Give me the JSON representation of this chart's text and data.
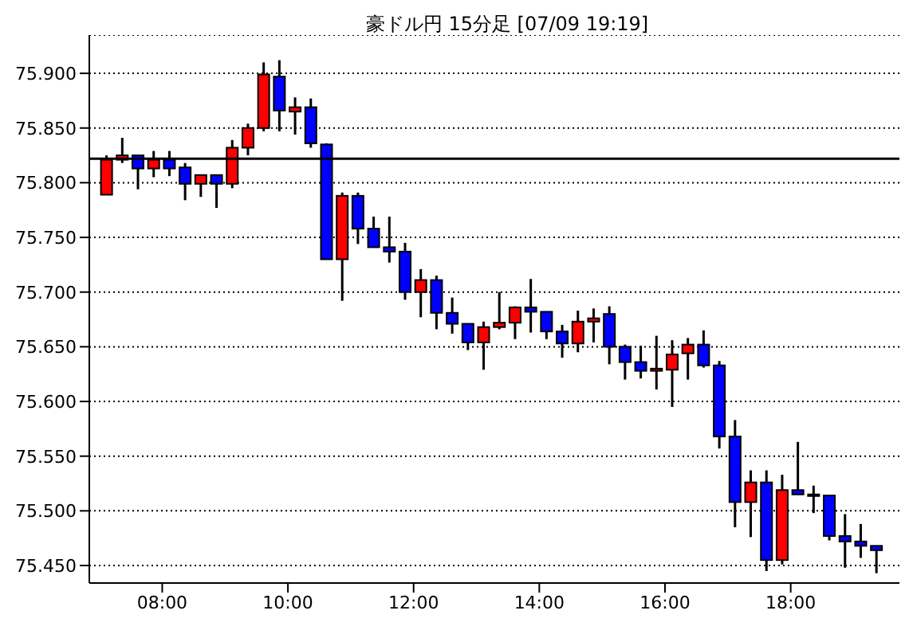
{
  "chart_data": {
    "type": "candlestick",
    "title": "豪ドル円 15分足 [07/09 19:19]",
    "x": [
      7.125,
      7.375,
      7.625,
      7.875,
      8.125,
      8.375,
      8.625,
      8.875,
      9.125,
      9.375,
      9.625,
      9.875,
      10.125,
      10.375,
      10.625,
      10.875,
      11.125,
      11.375,
      11.625,
      11.875,
      12.125,
      12.375,
      12.625,
      12.875,
      13.125,
      13.375,
      13.625,
      13.875,
      14.125,
      14.375,
      14.625,
      14.875,
      15.125,
      15.375,
      15.625,
      15.875,
      16.125,
      16.375,
      16.625,
      16.875,
      17.125,
      17.375,
      17.625,
      17.875,
      18.125,
      18.375,
      18.625,
      18.875,
      19.125,
      19.375
    ],
    "ohlc": [
      [
        75.789,
        75.825,
        75.789,
        75.821
      ],
      [
        75.821,
        75.841,
        75.818,
        75.825
      ],
      [
        75.825,
        75.825,
        75.794,
        75.813
      ],
      [
        75.813,
        75.829,
        75.805,
        75.821
      ],
      [
        75.821,
        75.829,
        75.806,
        75.813
      ],
      [
        75.814,
        75.818,
        75.784,
        75.799
      ],
      [
        75.799,
        75.807,
        75.787,
        75.807
      ],
      [
        75.807,
        75.807,
        75.777,
        75.799
      ],
      [
        75.799,
        75.839,
        75.795,
        75.832
      ],
      [
        75.832,
        75.854,
        75.825,
        75.85
      ],
      [
        75.85,
        75.91,
        75.847,
        75.899
      ],
      [
        75.897,
        75.912,
        75.847,
        75.866
      ],
      [
        75.865,
        75.878,
        75.844,
        75.869
      ],
      [
        75.869,
        75.877,
        75.832,
        75.836
      ],
      [
        75.835,
        75.836,
        75.73,
        75.73
      ],
      [
        75.73,
        75.791,
        75.692,
        75.788
      ],
      [
        75.788,
        75.791,
        75.744,
        75.758
      ],
      [
        75.758,
        75.769,
        75.741,
        75.741
      ],
      [
        75.741,
        75.769,
        75.727,
        75.737
      ],
      [
        75.737,
        75.745,
        75.693,
        75.7
      ],
      [
        75.7,
        75.721,
        75.677,
        75.711
      ],
      [
        75.711,
        75.715,
        75.666,
        75.681
      ],
      [
        75.681,
        75.695,
        75.662,
        75.671
      ],
      [
        75.671,
        75.671,
        75.647,
        75.654
      ],
      [
        75.654,
        75.673,
        75.629,
        75.668
      ],
      [
        75.668,
        75.7,
        75.666,
        75.672
      ],
      [
        75.672,
        75.687,
        75.657,
        75.686
      ],
      [
        75.686,
        75.712,
        75.663,
        75.682
      ],
      [
        75.682,
        75.682,
        75.657,
        75.664
      ],
      [
        75.664,
        75.67,
        75.64,
        75.653
      ],
      [
        75.653,
        75.683,
        75.645,
        75.673
      ],
      [
        75.673,
        75.685,
        75.654,
        75.676
      ],
      [
        75.68,
        75.687,
        75.634,
        75.65
      ],
      [
        75.65,
        75.652,
        75.62,
        75.636
      ],
      [
        75.636,
        75.651,
        75.621,
        75.628
      ],
      [
        75.628,
        75.66,
        75.611,
        75.63
      ],
      [
        75.629,
        75.656,
        75.595,
        75.643
      ],
      [
        75.644,
        75.658,
        75.62,
        75.652
      ],
      [
        75.652,
        75.665,
        75.631,
        75.633
      ],
      [
        75.633,
        75.637,
        75.557,
        75.568
      ],
      [
        75.568,
        75.583,
        75.485,
        75.508
      ],
      [
        75.508,
        75.537,
        75.476,
        75.526
      ],
      [
        75.526,
        75.537,
        75.445,
        75.455
      ],
      [
        75.455,
        75.533,
        75.451,
        75.519
      ],
      [
        75.519,
        75.563,
        75.515,
        75.515
      ],
      [
        75.515,
        75.523,
        75.498,
        75.514
      ],
      [
        75.514,
        75.514,
        75.473,
        75.477
      ],
      [
        75.477,
        75.497,
        75.448,
        75.472
      ],
      [
        75.472,
        75.488,
        75.457,
        75.468
      ],
      [
        75.468,
        75.468,
        75.443,
        75.464
      ]
    ],
    "colors": [
      "#ff0000",
      "#ff0000",
      "#0000ff",
      "#ff0000",
      "#0000ff",
      "#0000ff",
      "#ff0000",
      "#0000ff",
      "#ff0000",
      "#ff0000",
      "#ff0000",
      "#0000ff",
      "#ff0000",
      "#0000ff",
      "#0000ff",
      "#ff0000",
      "#0000ff",
      "#0000ff",
      "#0000ff",
      "#0000ff",
      "#ff0000",
      "#0000ff",
      "#0000ff",
      "#0000ff",
      "#ff0000",
      "#ff0000",
      "#ff0000",
      "#0000ff",
      "#0000ff",
      "#0000ff",
      "#ff0000",
      "#ff0000",
      "#0000ff",
      "#0000ff",
      "#0000ff",
      "#ff0000",
      "#ff0000",
      "#ff0000",
      "#0000ff",
      "#0000ff",
      "#0000ff",
      "#ff0000",
      "#0000ff",
      "#ff0000",
      "#0000ff",
      "#0000ff",
      "#0000ff",
      "#0000ff",
      "#0000ff",
      "#0000ff"
    ],
    "xlim": [
      6.84,
      19.73
    ],
    "xticks": [
      {
        "value": 8,
        "label": "08:00"
      },
      {
        "value": 10,
        "label": "10:00"
      },
      {
        "value": 12,
        "label": "12:00"
      },
      {
        "value": 14,
        "label": "14:00"
      },
      {
        "value": 16,
        "label": "16:00"
      },
      {
        "value": 18,
        "label": "18:00"
      }
    ],
    "ylim": [
      75.434,
      75.935
    ],
    "yticks": [
      {
        "value": 75.45,
        "label": "75.450"
      },
      {
        "value": 75.5,
        "label": "75.500"
      },
      {
        "value": 75.55,
        "label": "75.550"
      },
      {
        "value": 75.6,
        "label": "75.600"
      },
      {
        "value": 75.65,
        "label": "75.650"
      },
      {
        "value": 75.7,
        "label": "75.700"
      },
      {
        "value": 75.75,
        "label": "75.750"
      },
      {
        "value": 75.8,
        "label": "75.800"
      },
      {
        "value": 75.85,
        "label": "75.850"
      },
      {
        "value": 75.9,
        "label": "75.900"
      }
    ],
    "grid": "y",
    "ref_lines": [
      {
        "axis": "y",
        "value": 75.822,
        "color": "#000000"
      }
    ]
  }
}
